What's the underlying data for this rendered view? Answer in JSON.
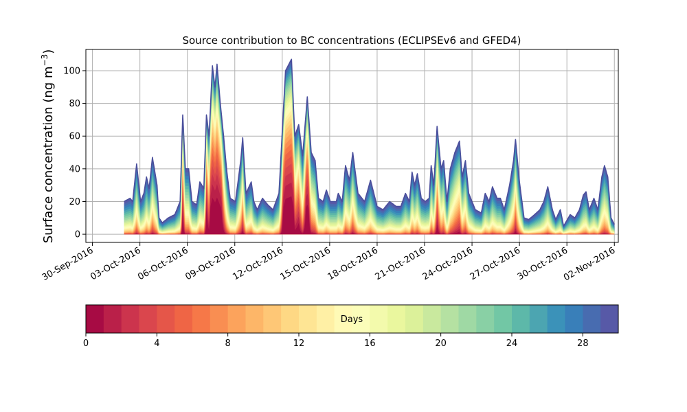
{
  "chart_data": {
    "type": "area",
    "title": "Source contribution to BC concentrations (ECLIPSEv6 and GFED4)",
    "ylabel_main": "Surface concentration (ng m",
    "ylabel_sup": "−3",
    "ylabel_close": ")",
    "xlabel": "",
    "x_start": "2016-10-01",
    "x_range": [
      "2016-09-29T14:00",
      "2016-11-02T06:00"
    ],
    "ylim": [
      -5,
      113
    ],
    "grid": true,
    "x_ticks": [
      {
        "date": "2016-09-30",
        "label": "30-Sep-2016"
      },
      {
        "date": "2016-10-03",
        "label": "03-Oct-2016"
      },
      {
        "date": "2016-10-06",
        "label": "06-Oct-2016"
      },
      {
        "date": "2016-10-09",
        "label": "09-Oct-2016"
      },
      {
        "date": "2016-10-12",
        "label": "12-Oct-2016"
      },
      {
        "date": "2016-10-15",
        "label": "15-Oct-2016"
      },
      {
        "date": "2016-10-18",
        "label": "18-Oct-2016"
      },
      {
        "date": "2016-10-21",
        "label": "21-Oct-2016"
      },
      {
        "date": "2016-10-24",
        "label": "24-Oct-2016"
      },
      {
        "date": "2016-10-27",
        "label": "27-Oct-2016"
      },
      {
        "date": "2016-10-30",
        "label": "30-Oct-2016"
      },
      {
        "date": "2016-11-02",
        "label": "02-Nov-2016"
      }
    ],
    "y_ticks": [
      {
        "value": 0,
        "label": "0"
      },
      {
        "value": 20,
        "label": "20"
      },
      {
        "value": 40,
        "label": "40"
      },
      {
        "value": 60,
        "label": "60"
      },
      {
        "value": 80,
        "label": "80"
      },
      {
        "value": 100,
        "label": "100"
      }
    ],
    "total": [
      [
        "2016-10-02T00:00",
        20
      ],
      [
        "2016-10-02T09:00",
        22
      ],
      [
        "2016-10-02T13:00",
        20
      ],
      [
        "2016-10-02T19:00",
        43
      ],
      [
        "2016-10-03T01:00",
        20
      ],
      [
        "2016-10-03T06:00",
        25
      ],
      [
        "2016-10-03T10:00",
        35
      ],
      [
        "2016-10-03T14:00",
        28
      ],
      [
        "2016-10-03T19:00",
        47
      ],
      [
        "2016-10-04T02:00",
        30
      ],
      [
        "2016-10-04T05:00",
        10
      ],
      [
        "2016-10-04T10:00",
        7
      ],
      [
        "2016-10-04T19:00",
        10
      ],
      [
        "2016-10-05T05:00",
        12
      ],
      [
        "2016-10-05T13:00",
        20
      ],
      [
        "2016-10-05T17:00",
        73
      ],
      [
        "2016-10-05T21:00",
        40
      ],
      [
        "2016-10-06T02:00",
        40
      ],
      [
        "2016-10-06T07:00",
        20
      ],
      [
        "2016-10-06T14:00",
        18
      ],
      [
        "2016-10-06T19:00",
        32
      ],
      [
        "2016-10-07T01:00",
        28
      ],
      [
        "2016-10-07T05:00",
        73
      ],
      [
        "2016-10-07T09:00",
        60
      ],
      [
        "2016-10-07T14:00",
        103
      ],
      [
        "2016-10-07T18:00",
        90
      ],
      [
        "2016-10-07T21:00",
        104
      ],
      [
        "2016-10-08T02:00",
        80
      ],
      [
        "2016-10-08T07:00",
        60
      ],
      [
        "2016-10-08T12:00",
        38
      ],
      [
        "2016-10-08T17:00",
        22
      ],
      [
        "2016-10-09T01:00",
        20
      ],
      [
        "2016-10-09T09:00",
        45
      ],
      [
        "2016-10-09T12:00",
        59
      ],
      [
        "2016-10-09T17:00",
        25
      ],
      [
        "2016-10-10T01:00",
        32
      ],
      [
        "2016-10-10T05:00",
        20
      ],
      [
        "2016-10-10T10:00",
        15
      ],
      [
        "2016-10-10T18:00",
        22
      ],
      [
        "2016-10-11T02:00",
        18
      ],
      [
        "2016-10-11T10:00",
        15
      ],
      [
        "2016-10-11T19:00",
        25
      ],
      [
        "2016-10-12T05:00",
        100
      ],
      [
        "2016-10-12T14:00",
        107
      ],
      [
        "2016-10-12T19:00",
        60
      ],
      [
        "2016-10-13T01:00",
        67
      ],
      [
        "2016-10-13T07:00",
        48
      ],
      [
        "2016-10-13T14:00",
        84
      ],
      [
        "2016-10-13T20:00",
        50
      ],
      [
        "2016-10-14T02:00",
        45
      ],
      [
        "2016-10-14T07:00",
        22
      ],
      [
        "2016-10-14T14:00",
        20
      ],
      [
        "2016-10-14T19:00",
        27
      ],
      [
        "2016-10-15T01:00",
        20
      ],
      [
        "2016-10-15T10:00",
        20
      ],
      [
        "2016-10-15T13:00",
        25
      ],
      [
        "2016-10-15T19:00",
        20
      ],
      [
        "2016-10-16T00:00",
        42
      ],
      [
        "2016-10-16T06:00",
        33
      ],
      [
        "2016-10-16T11:00",
        50
      ],
      [
        "2016-10-16T19:00",
        25
      ],
      [
        "2016-10-17T05:00",
        20
      ],
      [
        "2016-10-17T14:00",
        33
      ],
      [
        "2016-10-18T00:00",
        17
      ],
      [
        "2016-10-18T09:00",
        15
      ],
      [
        "2016-10-18T19:00",
        20
      ],
      [
        "2016-10-19T05:00",
        17
      ],
      [
        "2016-10-19T12:00",
        17
      ],
      [
        "2016-10-19T19:00",
        25
      ],
      [
        "2016-10-20T01:00",
        20
      ],
      [
        "2016-10-20T05:00",
        38
      ],
      [
        "2016-10-20T09:00",
        30
      ],
      [
        "2016-10-20T13:00",
        37
      ],
      [
        "2016-10-20T19:00",
        22
      ],
      [
        "2016-10-21T01:00",
        20
      ],
      [
        "2016-10-21T07:00",
        22
      ],
      [
        "2016-10-21T10:00",
        42
      ],
      [
        "2016-10-21T14:00",
        30
      ],
      [
        "2016-10-21T19:00",
        66
      ],
      [
        "2016-10-22T01:00",
        40
      ],
      [
        "2016-10-22T05:00",
        45
      ],
      [
        "2016-10-22T10:00",
        20
      ],
      [
        "2016-10-22T15:00",
        40
      ],
      [
        "2016-10-22T22:00",
        50
      ],
      [
        "2016-10-23T05:00",
        57
      ],
      [
        "2016-10-23T09:00",
        35
      ],
      [
        "2016-10-23T14:00",
        45
      ],
      [
        "2016-10-23T19:00",
        25
      ],
      [
        "2016-10-24T05:00",
        15
      ],
      [
        "2016-10-24T14:00",
        13
      ],
      [
        "2016-10-24T20:00",
        25
      ],
      [
        "2016-10-25T02:00",
        20
      ],
      [
        "2016-10-25T07:00",
        29
      ],
      [
        "2016-10-25T14:00",
        22
      ],
      [
        "2016-10-25T19:00",
        22
      ],
      [
        "2016-10-26T01:00",
        15
      ],
      [
        "2016-10-26T09:00",
        30
      ],
      [
        "2016-10-26T15:00",
        45
      ],
      [
        "2016-10-26T18:00",
        58
      ],
      [
        "2016-10-27T00:00",
        32
      ],
      [
        "2016-10-27T07:00",
        10
      ],
      [
        "2016-10-27T14:00",
        9
      ],
      [
        "2016-10-27T23:00",
        12
      ],
      [
        "2016-10-28T07:00",
        15
      ],
      [
        "2016-10-28T13:00",
        20
      ],
      [
        "2016-10-28T19:00",
        29
      ],
      [
        "2016-10-29T02:00",
        15
      ],
      [
        "2016-10-29T07:00",
        9
      ],
      [
        "2016-10-29T14:00",
        15
      ],
      [
        "2016-10-29T19:00",
        5
      ],
      [
        "2016-10-30T05:00",
        12
      ],
      [
        "2016-10-30T12:00",
        10
      ],
      [
        "2016-10-30T19:00",
        15
      ],
      [
        "2016-10-31T01:00",
        24
      ],
      [
        "2016-10-31T05:00",
        26
      ],
      [
        "2016-10-31T10:00",
        15
      ],
      [
        "2016-10-31T17:00",
        22
      ],
      [
        "2016-10-31T23:00",
        15
      ],
      [
        "2016-11-01T05:00",
        35
      ],
      [
        "2016-11-01T09:00",
        42
      ],
      [
        "2016-11-01T14:00",
        35
      ],
      [
        "2016-11-01T19:00",
        10
      ],
      [
        "2016-11-02T00:00",
        6
      ]
    ],
    "colorbar": {
      "label": "Days",
      "min": 0,
      "max": 30,
      "bands": 30,
      "colormap": "Spectral",
      "ticks": [
        {
          "value": 0,
          "label": "0"
        },
        {
          "value": 4,
          "label": "4"
        },
        {
          "value": 8,
          "label": "8"
        },
        {
          "value": 12,
          "label": "12"
        },
        {
          "value": 16,
          "label": "16"
        },
        {
          "value": 20,
          "label": "20"
        },
        {
          "value": 24,
          "label": "24"
        },
        {
          "value": 28,
          "label": "28"
        }
      ],
      "colors": [
        "#9e0142",
        "#d53e4f",
        "#f46d43",
        "#fdae61",
        "#fee08b",
        "#ffffbf",
        "#e6f598",
        "#abdda4",
        "#66c2a5",
        "#3288bd",
        "#5e4fa2"
      ]
    }
  }
}
